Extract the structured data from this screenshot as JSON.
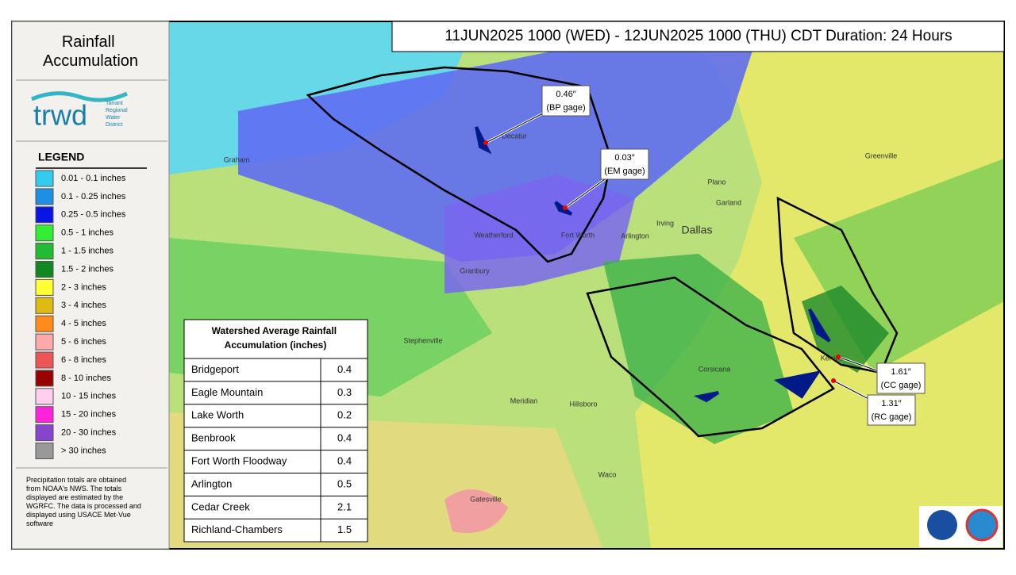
{
  "header": {
    "title": "Rainfall Accumulation",
    "period": "11JUN2025 1000 (WED) - 12JUN2025 1000 (THU) CDT Duration: 24 Hours"
  },
  "logo": {
    "name": "trwd",
    "subtitle": "Tarrant Regional Water District"
  },
  "legend": {
    "title": "LEGEND",
    "items": [
      {
        "label": "0.01 - 0.1 inches",
        "color": "#33ccee"
      },
      {
        "label": "0.1 - 0.25 inches",
        "color": "#1e8fe6"
      },
      {
        "label": "0.25 - 0.5 inches",
        "color": "#0a14e6"
      },
      {
        "label": "0.5 - 1 inches",
        "color": "#33ee33"
      },
      {
        "label": "1 - 1.5 inches",
        "color": "#22bb33"
      },
      {
        "label": "1.5 - 2 inches",
        "color": "#118822"
      },
      {
        "label": "2 - 3 inches",
        "color": "#ffff33"
      },
      {
        "label": "3 - 4 inches",
        "color": "#ddbb11"
      },
      {
        "label": "4 - 5 inches",
        "color": "#ff8c1a"
      },
      {
        "label": "5 - 6 inches",
        "color": "#ffaaaa"
      },
      {
        "label": "6 - 8 inches",
        "color": "#ee5555"
      },
      {
        "label": "8 - 10 inches",
        "color": "#990000"
      },
      {
        "label": "10 - 15 inches",
        "color": "#ffd0ee"
      },
      {
        "label": "15 - 20 inches",
        "color": "#ff22dd"
      },
      {
        "label": "20 - 30 inches",
        "color": "#8844cc"
      },
      {
        "label": "> 30 inches",
        "color": "#999999"
      }
    ]
  },
  "footnote": "Precipitation totals are obtained from NOAA's NWS. The totals displayed are estimated by the WGRFC. The data is processed and displayed using USACE Met-Vue software",
  "table": {
    "title": "Watershed Average Rainfall Accumulation (inches)",
    "rows": [
      [
        "Bridgeport",
        "0.4"
      ],
      [
        "Eagle Mountain",
        "0.3"
      ],
      [
        "Lake Worth",
        "0.2"
      ],
      [
        "Benbrook",
        "0.4"
      ],
      [
        "Fort Worth Floodway",
        "0.4"
      ],
      [
        "Arlington",
        "0.5"
      ],
      [
        "Cedar Creek",
        "2.1"
      ],
      [
        "Richland-Chambers",
        "1.5"
      ]
    ]
  },
  "callouts": [
    {
      "lines": [
        "0.46″",
        "(BP gage)"
      ]
    },
    {
      "lines": [
        "0.03″",
        "(EM gage)"
      ]
    },
    {
      "lines": [
        "1.61″",
        "(CC gage)"
      ]
    },
    {
      "lines": [
        "1.31″",
        "(RC gage)"
      ]
    }
  ],
  "map_labels": [
    "Dallas",
    "Irving",
    "Arlington",
    "Garland",
    "Plano",
    "Fort Worth",
    "Waco",
    "Graham",
    "Weatherford",
    "Granbury",
    "Stephenville",
    "Corsicana",
    "Meridian",
    "Gatesville",
    "Decatur",
    "Greenville",
    "Kerens",
    "Hillsboro"
  ]
}
